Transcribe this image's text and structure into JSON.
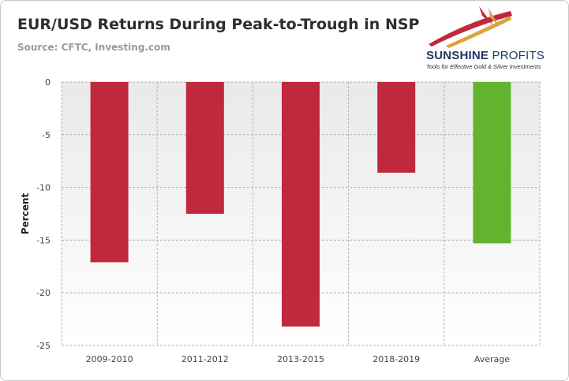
{
  "header": {
    "title": "EUR/USD Returns During Peak-to-Trough in NSP",
    "subtitle": "Source: CFTC,  Investing.com"
  },
  "logo": {
    "name_part1": "SUNSHINE",
    "name_part2": "PROFITS",
    "tagline": "Tools for Effective Gold & Silver Investments"
  },
  "colors": {
    "negative_bar": "#c0283c",
    "average_bar": "#63b32e",
    "plot_background_top": "#e9e9e9",
    "plot_background_bottom": "#ffffff",
    "grid": "#b3b3b3",
    "logo_red": "#c0283c",
    "logo_gold": "#d9a441"
  },
  "chart_data": {
    "type": "bar",
    "title": "EUR/USD Returns During Peak-to-Trough in NSP",
    "subtitle": "Source: CFTC,  Investing.com",
    "xlabel": "",
    "ylabel": "Percent",
    "categories": [
      "2009-2010",
      "2011-2012",
      "2013-2015",
      "2018-2019",
      "Average"
    ],
    "values": [
      -17.1,
      -12.5,
      -23.2,
      -8.6,
      -15.3
    ],
    "ylim": [
      -25,
      0
    ],
    "yticks": [
      0,
      -5,
      -10,
      -15,
      -20,
      -25
    ],
    "grid": true,
    "legend": "none"
  }
}
